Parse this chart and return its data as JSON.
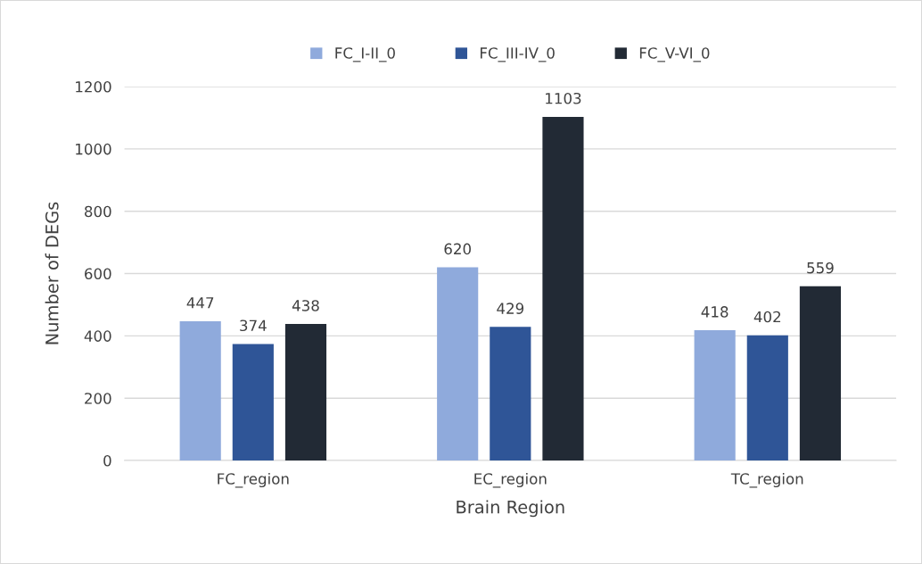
{
  "chart_data": {
    "type": "bar",
    "xlabel": "Brain Region",
    "ylabel": "Number of DEGs",
    "categories": [
      "FC_region",
      "EC_region",
      "TC_region"
    ],
    "series": [
      {
        "name": "FC_I-II_0",
        "color": "#8faadc",
        "values": [
          447,
          620,
          418
        ]
      },
      {
        "name": "FC_III-IV_0",
        "color": "#2f5597",
        "values": [
          374,
          429,
          402
        ]
      },
      {
        "name": "FC_V-VI_0",
        "color": "#222a35",
        "values": [
          438,
          1103,
          559
        ]
      }
    ],
    "ylim": [
      0,
      1200
    ],
    "yticks": [
      0,
      200,
      400,
      600,
      800,
      1000,
      1200
    ],
    "grid": "y",
    "legend": "top",
    "data_labels": true
  }
}
